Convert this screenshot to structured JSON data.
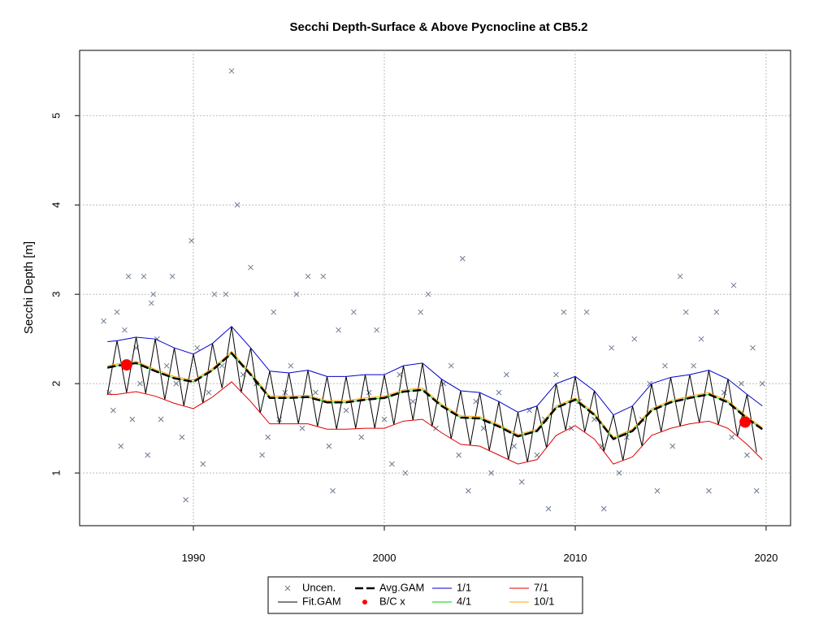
{
  "chart_data": {
    "type": "line",
    "title": "Secchi Depth-Surface & Above Pycnocline at CB5.2",
    "y_label": "Secchi Depth [m]",
    "xlim": [
      1984.04,
      2021.28
    ],
    "xticks": [
      1990,
      2000,
      2010,
      2020
    ],
    "ylim": [
      0.41,
      5.73
    ],
    "yticks": [
      1,
      2,
      3,
      4,
      5
    ],
    "grid": true,
    "legend": "bottom",
    "series": [
      {
        "name": "Uncen.",
        "color": "#6b7a8f",
        "style": "x",
        "x": [
          1985.3,
          1985.6,
          1985.8,
          1986.0,
          1986.2,
          1986.4,
          1986.6,
          1986.8,
          1987.0,
          1987.2,
          1987.4,
          1987.6,
          1987.8,
          1987.9,
          1988.1,
          1988.3,
          1988.6,
          1988.9,
          1989.1,
          1989.4,
          1989.6,
          1989.9,
          1990.2,
          1990.5,
          1990.8,
          1991.1,
          1991.5,
          1991.7,
          1992.0,
          1992.3,
          1992.6,
          1993.0,
          1993.3,
          1993.6,
          1993.9,
          1994.2,
          1994.5,
          1994.8,
          1995.1,
          1995.4,
          1995.7,
          1996.0,
          1996.4,
          1996.8,
          1997.1,
          1997.3,
          1997.6,
          1998.0,
          1998.4,
          1998.8,
          1999.2,
          1999.6,
          2000.0,
          2000.4,
          2000.8,
          2001.1,
          2001.5,
          2001.9,
          2002.3,
          2002.7,
          2003.1,
          2003.5,
          2003.9,
          2004.1,
          2004.4,
          2004.8,
          2005.2,
          2005.6,
          2006.0,
          2006.4,
          2006.8,
          2007.2,
          2007.6,
          2008.0,
          2008.4,
          2008.6,
          2009.0,
          2009.4,
          2009.8,
          2010.2,
          2010.6,
          2011.0,
          2011.4,
          2011.5,
          2011.9,
          2012.3,
          2012.7,
          2013.1,
          2013.5,
          2013.9,
          2014.3,
          2014.7,
          2015.1,
          2015.5,
          2015.8,
          2016.2,
          2016.6,
          2017.0,
          2017.4,
          2017.8,
          2018.2,
          2018.3,
          2018.7,
          2019.0,
          2019.3,
          2019.5,
          2019.8
        ],
        "values": [
          2.7,
          1.9,
          1.7,
          2.8,
          1.3,
          2.6,
          3.2,
          1.6,
          2.4,
          2.0,
          3.2,
          1.2,
          2.9,
          3.0,
          2.5,
          1.6,
          2.2,
          3.2,
          2.0,
          1.4,
          0.7,
          3.6,
          2.4,
          1.1,
          1.9,
          3.0,
          2.2,
          3.0,
          5.5,
          4.0,
          2.1,
          3.3,
          2.0,
          1.2,
          1.4,
          2.8,
          1.6,
          1.9,
          2.2,
          3.0,
          1.5,
          3.2,
          1.9,
          3.2,
          1.3,
          0.8,
          2.6,
          1.7,
          2.8,
          1.4,
          1.9,
          2.6,
          1.6,
          1.1,
          2.1,
          1.0,
          1.8,
          2.8,
          3.0,
          1.5,
          2.0,
          2.2,
          1.2,
          3.4,
          0.8,
          1.8,
          1.5,
          1.0,
          1.9,
          2.1,
          1.3,
          0.9,
          1.7,
          1.2,
          1.6,
          0.6,
          2.1,
          2.8,
          1.5,
          1.8,
          2.8,
          1.6,
          1.3,
          0.6,
          2.4,
          1.0,
          1.4,
          2.5,
          1.6,
          2.0,
          0.8,
          2.2,
          1.3,
          3.2,
          2.8,
          2.2,
          2.5,
          0.8,
          2.8,
          1.9,
          1.4,
          3.1,
          2.0,
          1.2,
          2.4,
          0.8,
          2.0
        ]
      },
      {
        "name": "Fit.GAM",
        "color": "#000000",
        "style": "line",
        "x": [
          1985.5,
          1986,
          1986.5,
          1987,
          1987.5,
          1988,
          1988.5,
          1989,
          1989.5,
          1990,
          1990.5,
          1991,
          1991.5,
          1992,
          1992.5,
          1993,
          1993.5,
          1994,
          1994.5,
          1995,
          1995.5,
          1996,
          1996.5,
          1997,
          1997.5,
          1998,
          1998.5,
          1999,
          1999.5,
          2000,
          2000.5,
          2001,
          2001.5,
          2002,
          2002.5,
          2003,
          2003.5,
          2004,
          2004.5,
          2005,
          2005.5,
          2006,
          2006.5,
          2007,
          2007.5,
          2008,
          2008.5,
          2009,
          2009.5,
          2010,
          2010.5,
          2011,
          2011.5,
          2012,
          2012.5,
          2013,
          2013.5,
          2014,
          2014.5,
          2015,
          2015.5,
          2016,
          2016.5,
          2017,
          2017.5,
          2018,
          2018.5,
          2019,
          2019.5
        ],
        "values": [
          1.88,
          2.48,
          1.9,
          2.52,
          1.89,
          2.5,
          1.82,
          2.4,
          1.75,
          2.33,
          1.78,
          2.45,
          1.95,
          2.64,
          1.9,
          2.4,
          1.67,
          2.14,
          1.55,
          2.12,
          1.55,
          2.15,
          1.52,
          2.08,
          1.49,
          2.08,
          1.5,
          2.1,
          1.5,
          2.1,
          1.54,
          2.2,
          1.59,
          2.23,
          1.52,
          2.05,
          1.38,
          1.92,
          1.31,
          1.9,
          1.25,
          1.8,
          1.15,
          1.68,
          1.12,
          1.75,
          1.28,
          2.0,
          1.48,
          2.08,
          1.46,
          1.92,
          1.24,
          1.65,
          1.14,
          1.75,
          1.3,
          2.0,
          1.46,
          2.07,
          1.52,
          2.1,
          1.56,
          2.15,
          1.54,
          2.05,
          1.41,
          1.88,
          1.23
        ]
      },
      {
        "name": "Avg.GAM",
        "color": "#000000",
        "style": "dashed",
        "x": [
          1985.5,
          1986,
          1987,
          1988,
          1989,
          1990,
          1991,
          1992,
          1993,
          1994,
          1995,
          1996,
          1997,
          1998,
          1999,
          2000,
          2001,
          2002,
          2003,
          2004,
          2005,
          2006,
          2007,
          2008,
          2009,
          2010,
          2011,
          2012,
          2013,
          2014,
          2015,
          2016,
          2017,
          2018,
          2019,
          2019.8
        ],
        "values": [
          2.18,
          2.2,
          2.23,
          2.14,
          2.06,
          2.02,
          2.15,
          2.34,
          2.1,
          1.84,
          1.84,
          1.85,
          1.79,
          1.79,
          1.82,
          1.84,
          1.91,
          1.93,
          1.75,
          1.62,
          1.61,
          1.52,
          1.41,
          1.47,
          1.73,
          1.82,
          1.65,
          1.38,
          1.47,
          1.7,
          1.79,
          1.84,
          1.88,
          1.79,
          1.61,
          1.49
        ]
      },
      {
        "name": "B/C x",
        "color": "#ff0000",
        "style": "dot",
        "x": [
          1986.5,
          2018.9
        ],
        "values": [
          2.21,
          1.57
        ]
      },
      {
        "name": "1/1",
        "color": "#0000cc",
        "style": "line",
        "x": [
          1985.5,
          1986,
          1987,
          1988,
          1989,
          1990,
          1991,
          1992,
          1993,
          1994,
          1995,
          1996,
          1997,
          1998,
          1999,
          2000,
          2001,
          2002,
          2003,
          2004,
          2005,
          2006,
          2007,
          2008,
          2009,
          2010,
          2011,
          2012,
          2013,
          2014,
          2015,
          2016,
          2017,
          2018,
          2019,
          2019.8
        ],
        "values": [
          2.47,
          2.48,
          2.52,
          2.5,
          2.4,
          2.33,
          2.45,
          2.64,
          2.4,
          2.14,
          2.12,
          2.15,
          2.08,
          2.08,
          2.1,
          2.1,
          2.2,
          2.23,
          2.05,
          1.92,
          1.9,
          1.8,
          1.68,
          1.75,
          2.0,
          2.08,
          1.92,
          1.65,
          1.75,
          2.0,
          2.07,
          2.1,
          2.15,
          2.05,
          1.88,
          1.75
        ]
      },
      {
        "name": "4/1",
        "color": "#00cc00",
        "style": "line",
        "x": [
          1985.5,
          1986,
          1987,
          1988,
          1989,
          1990,
          1991,
          1992,
          1993,
          1994,
          1995,
          1996,
          1997,
          1998,
          1999,
          2000,
          2001,
          2002,
          2003,
          2004,
          2005,
          2006,
          2007,
          2008,
          2009,
          2010,
          2011,
          2012,
          2013,
          2014,
          2015,
          2016,
          2017,
          2018,
          2019,
          2019.8
        ],
        "values": [
          2.17,
          2.2,
          2.23,
          2.14,
          2.06,
          2.02,
          2.15,
          2.34,
          2.1,
          1.84,
          1.84,
          1.85,
          1.79,
          1.79,
          1.82,
          1.84,
          1.91,
          1.93,
          1.75,
          1.62,
          1.61,
          1.52,
          1.41,
          1.47,
          1.73,
          1.82,
          1.65,
          1.38,
          1.47,
          1.7,
          1.79,
          1.84,
          1.88,
          1.79,
          1.61,
          1.49
        ]
      },
      {
        "name": "7/1",
        "color": "#dd0000",
        "style": "line",
        "x": [
          1985.5,
          1986,
          1987,
          1988,
          1989,
          1990,
          1991,
          1992,
          1993,
          1994,
          1995,
          1996,
          1997,
          1998,
          1999,
          2000,
          2001,
          2002,
          2003,
          2004,
          2005,
          2006,
          2007,
          2008,
          2009,
          2010,
          2011,
          2012,
          2013,
          2014,
          2015,
          2016,
          2017,
          2018,
          2019,
          2019.8
        ],
        "values": [
          1.88,
          1.88,
          1.91,
          1.86,
          1.78,
          1.72,
          1.85,
          2.02,
          1.8,
          1.55,
          1.55,
          1.55,
          1.49,
          1.49,
          1.5,
          1.5,
          1.58,
          1.6,
          1.45,
          1.32,
          1.3,
          1.2,
          1.1,
          1.15,
          1.42,
          1.53,
          1.38,
          1.1,
          1.18,
          1.42,
          1.5,
          1.55,
          1.58,
          1.5,
          1.32,
          1.15
        ]
      },
      {
        "name": "10/1",
        "color": "#ffa500",
        "style": "line",
        "x": [
          1985.5,
          1986,
          1987,
          1988,
          1989,
          1990,
          1991,
          1992,
          1993,
          1994,
          1995,
          1996,
          1997,
          1998,
          1999,
          2000,
          2001,
          2002,
          2003,
          2004,
          2005,
          2006,
          2007,
          2008,
          2009,
          2010,
          2011,
          2012,
          2013,
          2014,
          2015,
          2016,
          2017,
          2018,
          2019,
          2019.8
        ],
        "values": [
          2.2,
          2.22,
          2.25,
          2.16,
          2.08,
          2.04,
          2.17,
          2.36,
          2.12,
          1.86,
          1.86,
          1.87,
          1.81,
          1.81,
          1.84,
          1.86,
          1.93,
          1.95,
          1.77,
          1.64,
          1.63,
          1.54,
          1.43,
          1.49,
          1.75,
          1.84,
          1.67,
          1.4,
          1.49,
          1.72,
          1.81,
          1.86,
          1.9,
          1.81,
          1.63,
          1.51
        ]
      }
    ]
  }
}
